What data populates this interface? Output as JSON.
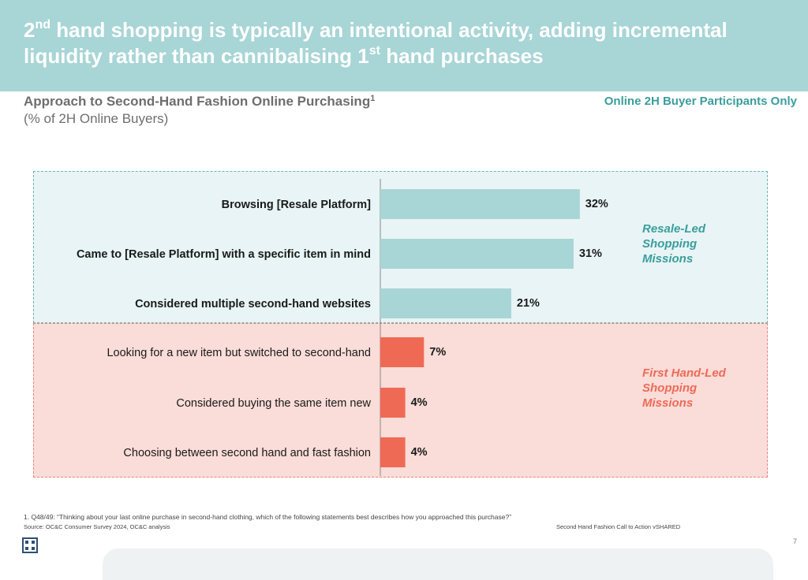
{
  "header": {
    "title_parts": [
      "2",
      "nd",
      " hand shopping is typically an intentional activity, adding incremental liquidity rather than cannibalising 1",
      "st",
      " hand purchases"
    ]
  },
  "chart_header": {
    "title": "Approach to Second-Hand Fashion Online Purchasing",
    "title_sup": "1",
    "subtitle": "(% of 2H Online Buyers)",
    "base_note": "Online 2H Buyer Participants Only"
  },
  "chart_data": {
    "type": "bar",
    "orientation": "horizontal",
    "title": "Approach to Second-Hand Fashion Online Purchasing",
    "subtitle": "(% of 2H Online Buyers)",
    "categories": [
      "Browsing [Resale Platform]",
      "Came to [Resale Platform] with a specific item in mind",
      "Considered multiple second-hand websites",
      "Looking for a new item but switched to second-hand",
      "Considered buying the same item new",
      "Choosing between second hand and fast fashion"
    ],
    "values": [
      32,
      31,
      21,
      7,
      4,
      4
    ],
    "value_labels": [
      "32%",
      "31%",
      "21%",
      "7%",
      "4%",
      "4%"
    ],
    "unit": "%",
    "xlim": [
      0,
      40
    ],
    "grid": false,
    "groups": [
      {
        "label": "Resale-Led Shopping Missions",
        "members": [
          0,
          1,
          2
        ],
        "color": "#a8d5d6",
        "label_color": "#3a9e9c"
      },
      {
        "label": "First Hand-Led Shopping Missions",
        "members": [
          3,
          4,
          5
        ],
        "color": "#ef6a55",
        "label_color": "#ec6b58"
      }
    ],
    "bold_categories": [
      0,
      1,
      2
    ]
  },
  "footer": {
    "footnote": "1. Q48/49: “Thinking about your last online purchase in second-hand clothing, which of the following statements best describes how you approached this purchase?”",
    "source": "Source: OC&C Consumer Survey 2024, OC&C analysis",
    "doc_ref": "Second Hand Fashion Call to Action vSHARED",
    "page_number": "7"
  },
  "icons": {
    "logo": "oc-and-c-logo-icon"
  }
}
